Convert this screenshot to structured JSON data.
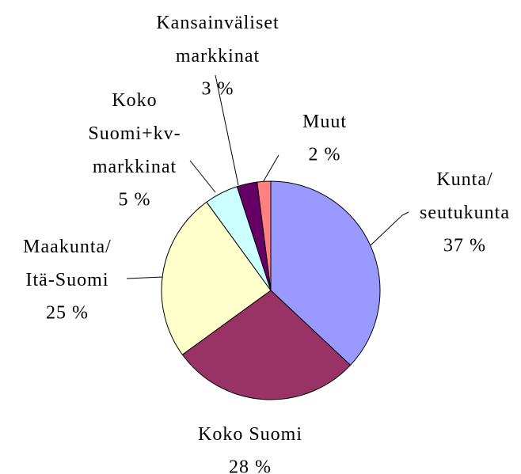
{
  "chart_data": {
    "type": "pie",
    "categories": [
      "Kunta/\nseutukunta",
      "Koko Suomi",
      "Maakunta/\nItä-Suomi",
      "Koko\nSuomi+kv-\nmarkkinat",
      "Kansainväliset\nmarkkinat",
      "Muut"
    ],
    "values": [
      37,
      28,
      25,
      5,
      3,
      2
    ],
    "value_labels": [
      "37 %",
      "28 %",
      "25 %",
      "5 %",
      "3 %",
      "2 %"
    ],
    "colors": [
      "#9999ff",
      "#993366",
      "#ffffcc",
      "#ccffff",
      "#660066",
      "#ff8080"
    ]
  }
}
